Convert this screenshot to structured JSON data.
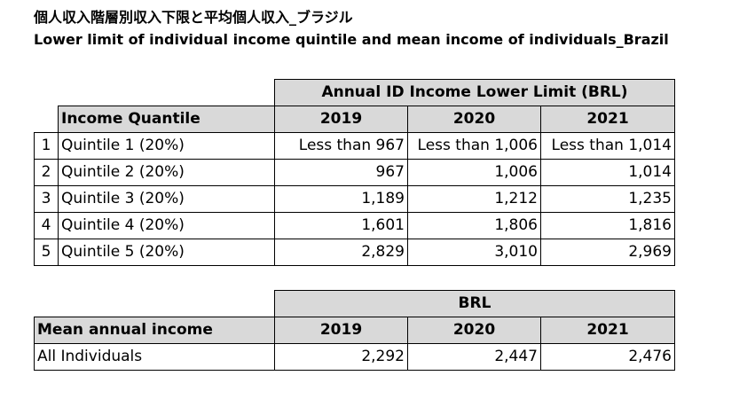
{
  "title_jp": "個人収入階層別収入下限と平均個人収入_ブラジル",
  "title_en": "Lower limit of individual income quintile and mean income of individuals_Brazil",
  "quintile_table": {
    "group_header": "Annual ID Income Lower Limit (BRL)",
    "row_header": "Income Quantile",
    "years": [
      "2019",
      "2020",
      "2021"
    ],
    "rows": [
      {
        "index": "1",
        "label": "Quintile 1 (20%)",
        "values": [
          "Less than 967",
          "Less than 1,006",
          "Less than 1,014"
        ]
      },
      {
        "index": "2",
        "label": "Quintile 2 (20%)",
        "values": [
          "967",
          "1,006",
          "1,014"
        ]
      },
      {
        "index": "3",
        "label": "Quintile 3 (20%)",
        "values": [
          "1,189",
          "1,212",
          "1,235"
        ]
      },
      {
        "index": "4",
        "label": "Quintile 4 (20%)",
        "values": [
          "1,601",
          "1,806",
          "1,816"
        ]
      },
      {
        "index": "5",
        "label": "Quintile 5 (20%)",
        "values": [
          "2,829",
          "3,010",
          "2,969"
        ]
      }
    ]
  },
  "mean_table": {
    "group_header": "BRL",
    "row_header": "Mean annual income",
    "years": [
      "2019",
      "2020",
      "2021"
    ],
    "rows": [
      {
        "label": "All Individuals",
        "values": [
          "2,292",
          "2,447",
          "2,476"
        ]
      }
    ]
  }
}
